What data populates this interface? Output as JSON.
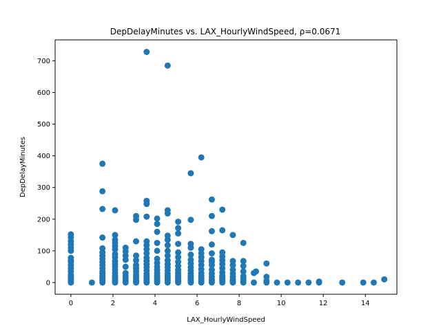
{
  "chart_data": {
    "type": "scatter",
    "title": "DepDelayMinutes vs. LAX_HourlyWindSpeed, ρ=0.0671",
    "xlabel": "LAX_HourlyWindSpeed",
    "ylabel": "DepDelayMinutes",
    "xlim": [
      -0.75,
      15.5
    ],
    "ylim": [
      -37,
      766
    ],
    "xticks": [
      0,
      2,
      4,
      6,
      8,
      10,
      12,
      14
    ],
    "yticks": [
      0,
      100,
      200,
      300,
      400,
      500,
      600,
      700
    ],
    "grid": false,
    "color": "#1f77b4",
    "series": [
      {
        "points": [
          [
            0,
            0
          ],
          [
            0,
            5
          ],
          [
            0,
            10
          ],
          [
            0,
            15
          ],
          [
            0,
            20
          ],
          [
            0,
            25
          ],
          [
            0,
            35
          ],
          [
            0,
            45
          ],
          [
            0,
            55
          ],
          [
            0,
            65
          ],
          [
            0,
            70
          ],
          [
            0,
            78
          ],
          [
            0,
            100
          ],
          [
            0,
            110
          ],
          [
            0,
            120
          ],
          [
            0,
            130
          ],
          [
            0,
            142
          ],
          [
            0,
            152
          ],
          [
            1.0,
            0
          ],
          [
            1.5,
            0
          ],
          [
            1.5,
            5
          ],
          [
            1.5,
            10
          ],
          [
            1.5,
            15
          ],
          [
            1.5,
            20
          ],
          [
            1.5,
            28
          ],
          [
            1.5,
            35
          ],
          [
            1.5,
            45
          ],
          [
            1.5,
            55
          ],
          [
            1.5,
            65
          ],
          [
            1.5,
            75
          ],
          [
            1.5,
            85
          ],
          [
            1.5,
            95
          ],
          [
            1.5,
            108
          ],
          [
            1.5,
            142
          ],
          [
            1.5,
            232
          ],
          [
            1.5,
            288
          ],
          [
            1.5,
            375
          ],
          [
            2.1,
            0
          ],
          [
            2.1,
            5
          ],
          [
            2.1,
            10
          ],
          [
            2.1,
            15
          ],
          [
            2.1,
            22
          ],
          [
            2.1,
            30
          ],
          [
            2.1,
            40
          ],
          [
            2.1,
            50
          ],
          [
            2.1,
            58
          ],
          [
            2.1,
            68
          ],
          [
            2.1,
            80
          ],
          [
            2.1,
            90
          ],
          [
            2.1,
            105
          ],
          [
            2.1,
            115
          ],
          [
            2.1,
            125
          ],
          [
            2.1,
            135
          ],
          [
            2.1,
            150
          ],
          [
            2.1,
            228
          ],
          [
            2.6,
            0
          ],
          [
            2.6,
            5
          ],
          [
            2.6,
            12
          ],
          [
            2.6,
            20
          ],
          [
            2.6,
            30
          ],
          [
            2.6,
            50
          ],
          [
            2.6,
            72
          ],
          [
            2.6,
            85
          ],
          [
            2.6,
            98
          ],
          [
            2.6,
            110
          ],
          [
            3.1,
            0
          ],
          [
            3.1,
            5
          ],
          [
            3.1,
            10
          ],
          [
            3.1,
            18
          ],
          [
            3.1,
            25
          ],
          [
            3.1,
            35
          ],
          [
            3.1,
            45
          ],
          [
            3.1,
            55
          ],
          [
            3.1,
            70
          ],
          [
            3.1,
            85
          ],
          [
            3.1,
            130
          ],
          [
            3.1,
            198
          ],
          [
            3.1,
            210
          ],
          [
            3.6,
            0
          ],
          [
            3.6,
            5
          ],
          [
            3.6,
            10
          ],
          [
            3.6,
            15
          ],
          [
            3.6,
            20
          ],
          [
            3.6,
            28
          ],
          [
            3.6,
            38
          ],
          [
            3.6,
            48
          ],
          [
            3.6,
            58
          ],
          [
            3.6,
            68
          ],
          [
            3.6,
            78
          ],
          [
            3.6,
            92
          ],
          [
            3.6,
            105
          ],
          [
            3.6,
            118
          ],
          [
            3.6,
            130
          ],
          [
            3.6,
            208
          ],
          [
            3.6,
            248
          ],
          [
            3.6,
            258
          ],
          [
            3.6,
            728
          ],
          [
            4.1,
            0
          ],
          [
            4.1,
            5
          ],
          [
            4.1,
            10
          ],
          [
            4.1,
            15
          ],
          [
            4.1,
            22
          ],
          [
            4.1,
            30
          ],
          [
            4.1,
            40
          ],
          [
            4.1,
            50
          ],
          [
            4.1,
            62
          ],
          [
            4.1,
            75
          ],
          [
            4.1,
            100
          ],
          [
            4.1,
            125
          ],
          [
            4.1,
            160
          ],
          [
            4.1,
            185
          ],
          [
            4.1,
            202
          ],
          [
            4.6,
            0
          ],
          [
            4.6,
            5
          ],
          [
            4.6,
            10
          ],
          [
            4.6,
            15
          ],
          [
            4.6,
            20
          ],
          [
            4.6,
            28
          ],
          [
            4.6,
            38
          ],
          [
            4.6,
            48
          ],
          [
            4.6,
            58
          ],
          [
            4.6,
            70
          ],
          [
            4.6,
            85
          ],
          [
            4.6,
            100
          ],
          [
            4.6,
            118
          ],
          [
            4.6,
            135
          ],
          [
            4.6,
            148
          ],
          [
            4.6,
            218
          ],
          [
            4.6,
            228
          ],
          [
            4.6,
            685
          ],
          [
            5.1,
            0
          ],
          [
            5.1,
            5
          ],
          [
            5.1,
            10
          ],
          [
            5.1,
            15
          ],
          [
            5.1,
            22
          ],
          [
            5.1,
            30
          ],
          [
            5.1,
            40
          ],
          [
            5.1,
            52
          ],
          [
            5.1,
            65
          ],
          [
            5.1,
            80
          ],
          [
            5.1,
            95
          ],
          [
            5.1,
            122
          ],
          [
            5.1,
            155
          ],
          [
            5.1,
            172
          ],
          [
            5.1,
            192
          ],
          [
            5.7,
            0
          ],
          [
            5.7,
            5
          ],
          [
            5.7,
            10
          ],
          [
            5.7,
            15
          ],
          [
            5.7,
            20
          ],
          [
            5.7,
            28
          ],
          [
            5.7,
            38
          ],
          [
            5.7,
            48
          ],
          [
            5.7,
            60
          ],
          [
            5.7,
            72
          ],
          [
            5.7,
            88
          ],
          [
            5.7,
            110
          ],
          [
            5.7,
            122
          ],
          [
            5.7,
            198
          ],
          [
            5.7,
            345
          ],
          [
            6.2,
            0
          ],
          [
            6.2,
            5
          ],
          [
            6.2,
            10
          ],
          [
            6.2,
            15
          ],
          [
            6.2,
            22
          ],
          [
            6.2,
            30
          ],
          [
            6.2,
            42
          ],
          [
            6.2,
            55
          ],
          [
            6.2,
            68
          ],
          [
            6.2,
            80
          ],
          [
            6.2,
            92
          ],
          [
            6.2,
            105
          ],
          [
            6.2,
            395
          ],
          [
            6.7,
            0
          ],
          [
            6.7,
            5
          ],
          [
            6.7,
            10
          ],
          [
            6.7,
            18
          ],
          [
            6.7,
            28
          ],
          [
            6.7,
            40
          ],
          [
            6.7,
            55
          ],
          [
            6.7,
            65
          ],
          [
            6.7,
            72
          ],
          [
            6.7,
            92
          ],
          [
            6.7,
            120
          ],
          [
            6.7,
            162
          ],
          [
            6.7,
            210
          ],
          [
            6.7,
            262
          ],
          [
            7.2,
            0
          ],
          [
            7.2,
            5
          ],
          [
            7.2,
            10
          ],
          [
            7.2,
            15
          ],
          [
            7.2,
            22
          ],
          [
            7.2,
            32
          ],
          [
            7.2,
            45
          ],
          [
            7.2,
            58
          ],
          [
            7.2,
            70
          ],
          [
            7.2,
            82
          ],
          [
            7.2,
            95
          ],
          [
            7.2,
            165
          ],
          [
            7.2,
            230
          ],
          [
            7.7,
            0
          ],
          [
            7.7,
            5
          ],
          [
            7.7,
            10
          ],
          [
            7.7,
            18
          ],
          [
            7.7,
            28
          ],
          [
            7.7,
            40
          ],
          [
            7.7,
            55
          ],
          [
            7.7,
            68
          ],
          [
            7.7,
            150
          ],
          [
            8.2,
            0
          ],
          [
            8.2,
            5
          ],
          [
            8.2,
            12
          ],
          [
            8.2,
            20
          ],
          [
            8.2,
            35
          ],
          [
            8.2,
            52
          ],
          [
            8.2,
            68
          ],
          [
            8.2,
            125
          ],
          [
            8.7,
            0
          ],
          [
            8.7,
            30
          ],
          [
            8.8,
            35
          ],
          [
            9.3,
            0
          ],
          [
            9.3,
            5
          ],
          [
            9.3,
            18
          ],
          [
            9.3,
            60
          ],
          [
            9.8,
            0
          ],
          [
            10.3,
            0
          ],
          [
            10.8,
            0
          ],
          [
            11.3,
            0
          ],
          [
            11.8,
            0
          ],
          [
            11.8,
            3
          ],
          [
            12.9,
            0
          ],
          [
            13.9,
            0
          ],
          [
            14.4,
            0
          ],
          [
            14.9,
            10
          ]
        ]
      }
    ]
  }
}
